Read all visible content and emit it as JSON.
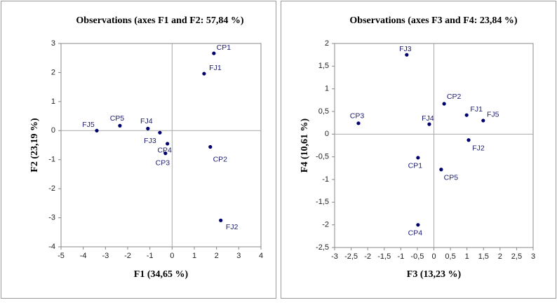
{
  "chart_data": [
    {
      "type": "scatter",
      "title": "Observations (axes F1 and F2: 57,84 %)",
      "x_label": "F1 (34,65 %)",
      "y_label": "F2 (23,19 %)",
      "labels": [
        "CP1",
        "FJ1",
        "CP2",
        "FJ2",
        "FJ5",
        "CP5",
        "FJ4",
        "FJ3",
        "CP4",
        "CP3"
      ],
      "x": [
        1.88,
        1.44,
        1.72,
        2.19,
        -3.39,
        -2.35,
        -1.09,
        -0.55,
        -0.21,
        -0.3
      ],
      "values": [
        2.66,
        1.96,
        -0.56,
        -3.09,
        0,
        0.17,
        0.07,
        -0.07,
        -0.45,
        -0.78
      ],
      "color": "#00006e",
      "xlim": [
        -5,
        4
      ],
      "xticks": [
        -5,
        -4,
        -3,
        -2,
        -1,
        0,
        1,
        2,
        3,
        4
      ],
      "ylim": [
        -4,
        3
      ],
      "yticks": [
        -4,
        -3,
        -2,
        -1,
        0,
        1,
        2,
        3
      ]
    },
    {
      "type": "scatter",
      "title": "Observations (axes F3 and F4: 23,84 %)",
      "x_label": "F3 (13,23 %)",
      "y_label": "F4 (10,61 %)",
      "labels": [
        "FJ3",
        "CP2",
        "FJ1",
        "FJ5",
        "CP3",
        "FJ4",
        "FJ2",
        "CP1",
        "CP5",
        "CP4"
      ],
      "x": [
        -0.82,
        0.31,
        0.99,
        1.49,
        -2.28,
        -0.14,
        1.05,
        -0.48,
        0.22,
        -0.48
      ],
      "values": [
        1.75,
        0.67,
        0.42,
        0.3,
        0.24,
        0.22,
        -0.13,
        -0.52,
        -0.78,
        -2.0
      ],
      "color": "#00006e",
      "xlim": [
        -3,
        3
      ],
      "xticks": [
        -3,
        {
          "value": -2.5,
          "label": "-2,5"
        },
        -2,
        {
          "value": -1.5,
          "label": "-1,5"
        },
        -1,
        {
          "value": -0.5,
          "label": "-0,5"
        },
        0,
        {
          "value": 0.5,
          "label": "0,5"
        },
        1,
        {
          "value": 1.5,
          "label": "1,5"
        },
        2,
        {
          "value": 2.5,
          "label": "2,5"
        },
        3
      ],
      "ylim": [
        -2.5,
        2
      ],
      "yticks": [
        {
          "value": -2.5,
          "label": "-2,5"
        },
        -2,
        {
          "value": -1.5,
          "label": "-1,5"
        },
        -1,
        {
          "value": -0.5,
          "label": "-0,5"
        },
        0,
        {
          "value": 0.5,
          "label": "0,5"
        },
        1,
        {
          "value": 1.5,
          "label": "1,5"
        },
        2
      ]
    }
  ]
}
